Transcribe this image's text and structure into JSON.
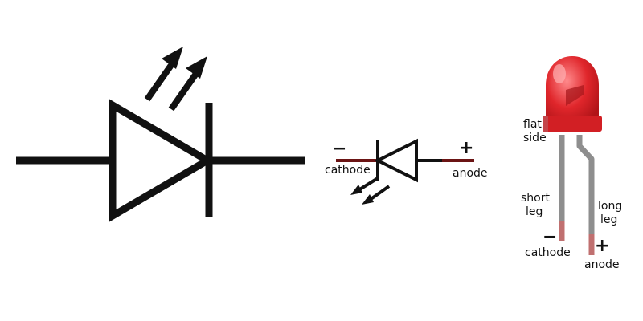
{
  "labels": {
    "small_symbol": {
      "cathode_sign": "−",
      "cathode": "cathode",
      "anode_sign": "+",
      "anode": "anode"
    },
    "physical_led": {
      "flat_side_line1": "flat",
      "flat_side_line2": "side",
      "short_leg_line1": "short",
      "short_leg_line2": "leg",
      "long_leg_line1": "long",
      "long_leg_line2": "leg",
      "cathode_sign": "−",
      "cathode": "cathode",
      "anode_sign": "+",
      "anode": "anode"
    }
  },
  "colors": {
    "ink": "#111111",
    "lead_accent": "#7a1010",
    "led_body": "#e0262b",
    "led_highlight": "#ff7a7c",
    "leg": "#8e8e8e",
    "leg_tip": "#b55252"
  }
}
